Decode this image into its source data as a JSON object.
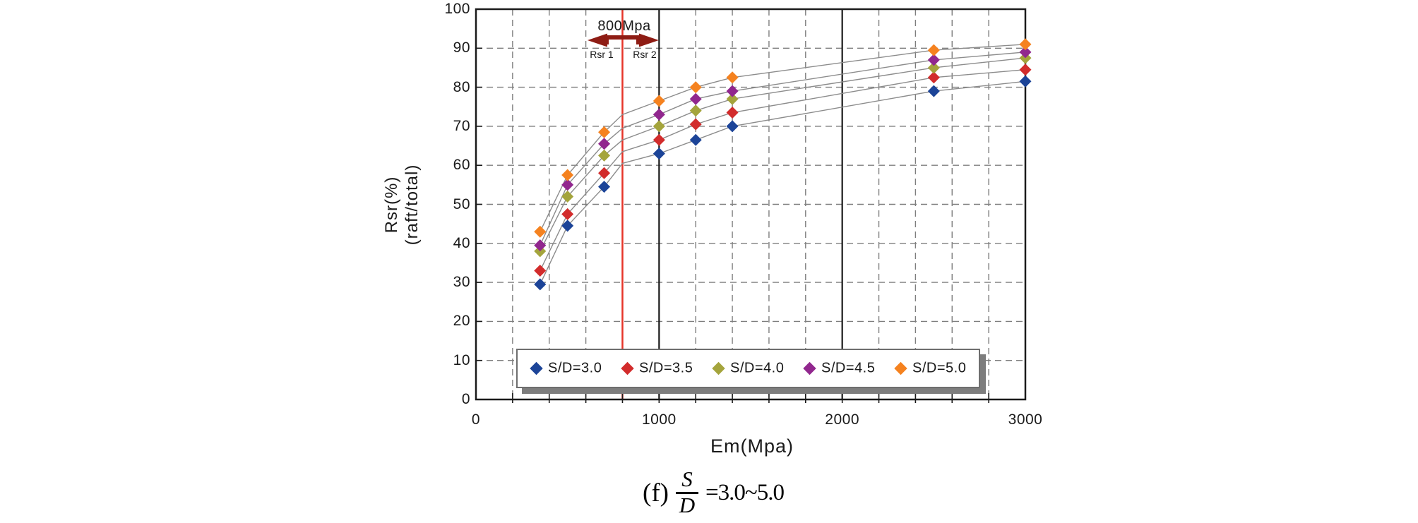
{
  "chart_data": {
    "type": "scatter",
    "title": "",
    "xlabel": "Em(Mpa)",
    "ylabel_line1": "Rsr(%)",
    "ylabel_line2": "(raft/total)",
    "xlim": [
      0,
      3000
    ],
    "ylim": [
      0,
      100
    ],
    "x_tick_labels": [
      "0",
      "1000",
      "2000",
      "3000"
    ],
    "x_major_values": [
      0,
      1000,
      2000,
      3000
    ],
    "x_minor_step": 200,
    "y_ticks": [
      100,
      90,
      80,
      70,
      60,
      50,
      40,
      30,
      20,
      10,
      0
    ],
    "grid": "dashed",
    "legend_position": "bottom-inside",
    "x": [
      350,
      500,
      700,
      1000,
      1200,
      1400,
      2500,
      3000
    ],
    "series": [
      {
        "name": "S/D=3.0",
        "color": "#1c4498",
        "values": [
          29.5,
          44.5,
          54.5,
          63,
          66.5,
          70,
          79,
          81.5
        ],
        "kink_at_800": 60.5
      },
      {
        "name": "S/D=3.5",
        "color": "#d22c2c",
        "values": [
          33,
          47.5,
          58,
          66.5,
          70.5,
          73.5,
          82.5,
          84.5
        ],
        "kink_at_800": 63.5
      },
      {
        "name": "S/D=4.0",
        "color": "#a4a43c",
        "values": [
          38,
          52,
          62.5,
          70,
          74,
          77,
          85,
          87.5
        ],
        "kink_at_800": 66.5
      },
      {
        "name": "S/D=4.5",
        "color": "#91278e",
        "values": [
          39.5,
          55,
          65.5,
          73,
          77,
          79,
          87,
          89
        ],
        "kink_at_800": 69.5
      },
      {
        "name": "S/D=5.0",
        "color": "#f5821f",
        "values": [
          43,
          57.5,
          68.5,
          76.5,
          80,
          82.5,
          89.5,
          91
        ],
        "kink_at_800": 73
      }
    ],
    "annotation": {
      "label": "800Mpa",
      "x_value": 800,
      "left_label": "Rsr 1",
      "right_label": "Rsr 2"
    },
    "caption": {
      "prefix": "(f)",
      "frac_top": "S",
      "frac_bottom": "D",
      "suffix": "=3.0~5.0"
    },
    "style": {
      "background": "#ffffff",
      "red_line_color": "#e63529",
      "arrow_color": "#8e1c14",
      "grid_color": "#7e7e7e",
      "axis_color": "#1a1a1a",
      "trend_line_color": "#8c8c8c",
      "legend_shadow_color": "#7d7d7d"
    }
  }
}
